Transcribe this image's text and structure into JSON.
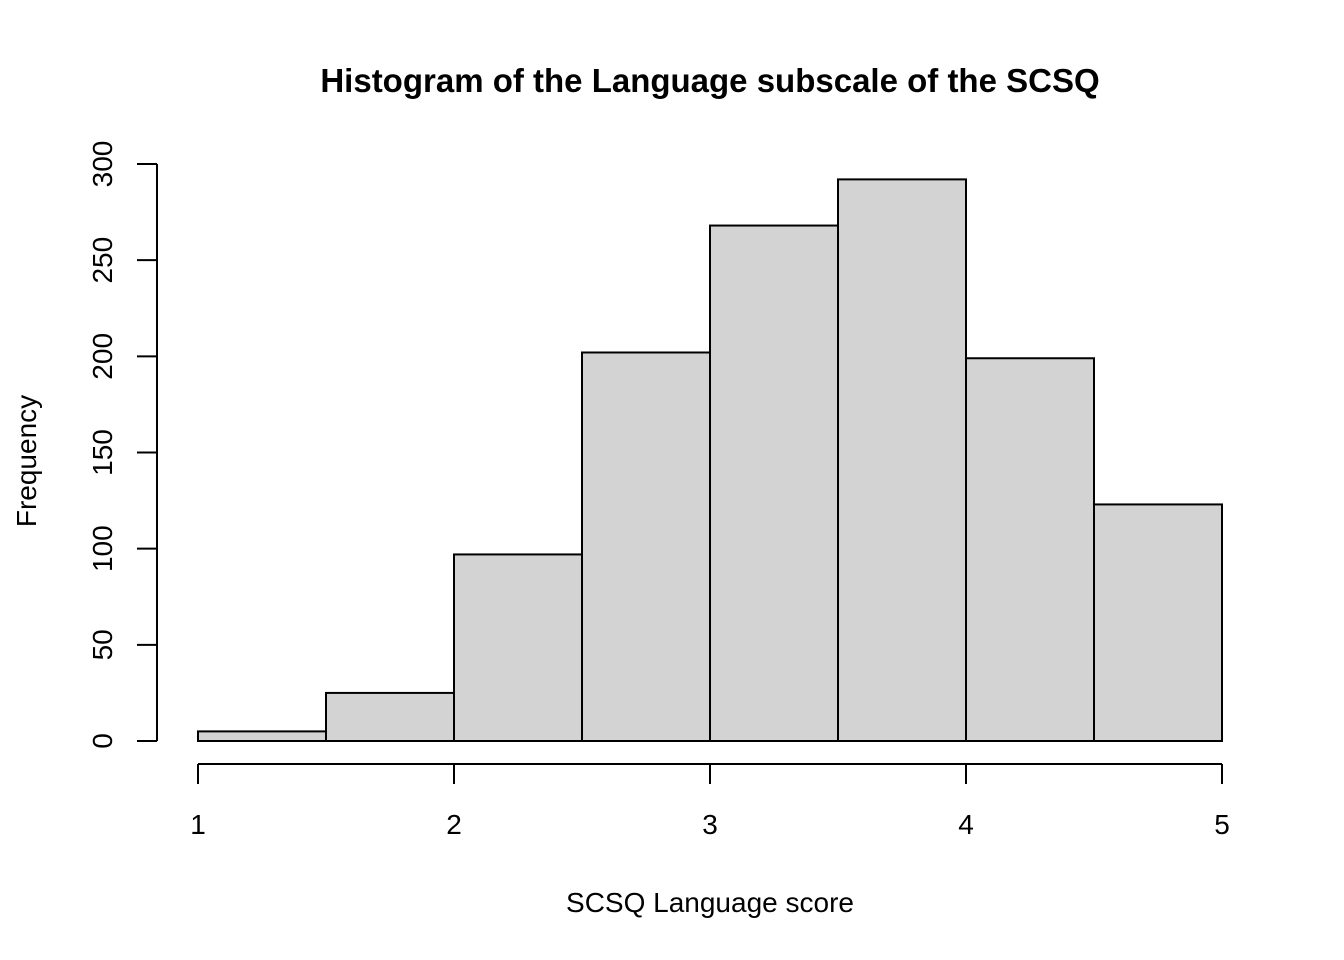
{
  "chart_data": {
    "type": "bar",
    "title": "Histogram of the Language subscale of the SCSQ",
    "xlabel": "SCSQ Language score",
    "ylabel": "Frequency",
    "bins": [
      {
        "x0": 1.0,
        "x1": 1.5,
        "value": 5
      },
      {
        "x0": 1.5,
        "x1": 2.0,
        "value": 25
      },
      {
        "x0": 2.0,
        "x1": 2.5,
        "value": 97
      },
      {
        "x0": 2.5,
        "x1": 3.0,
        "value": 202
      },
      {
        "x0": 3.0,
        "x1": 3.5,
        "value": 268
      },
      {
        "x0": 3.5,
        "x1": 4.0,
        "value": 292
      },
      {
        "x0": 4.0,
        "x1": 4.5,
        "value": 199
      },
      {
        "x0": 4.5,
        "x1": 5.0,
        "value": 123
      }
    ],
    "xlim": [
      1,
      5
    ],
    "ylim": [
      0,
      300
    ],
    "xticks": [
      "1",
      "2",
      "3",
      "4",
      "5"
    ],
    "yticks": [
      "0",
      "50",
      "100",
      "150",
      "200",
      "250",
      "300"
    ],
    "bar_color": "#d3d3d3",
    "grid": false,
    "legend": "none"
  }
}
